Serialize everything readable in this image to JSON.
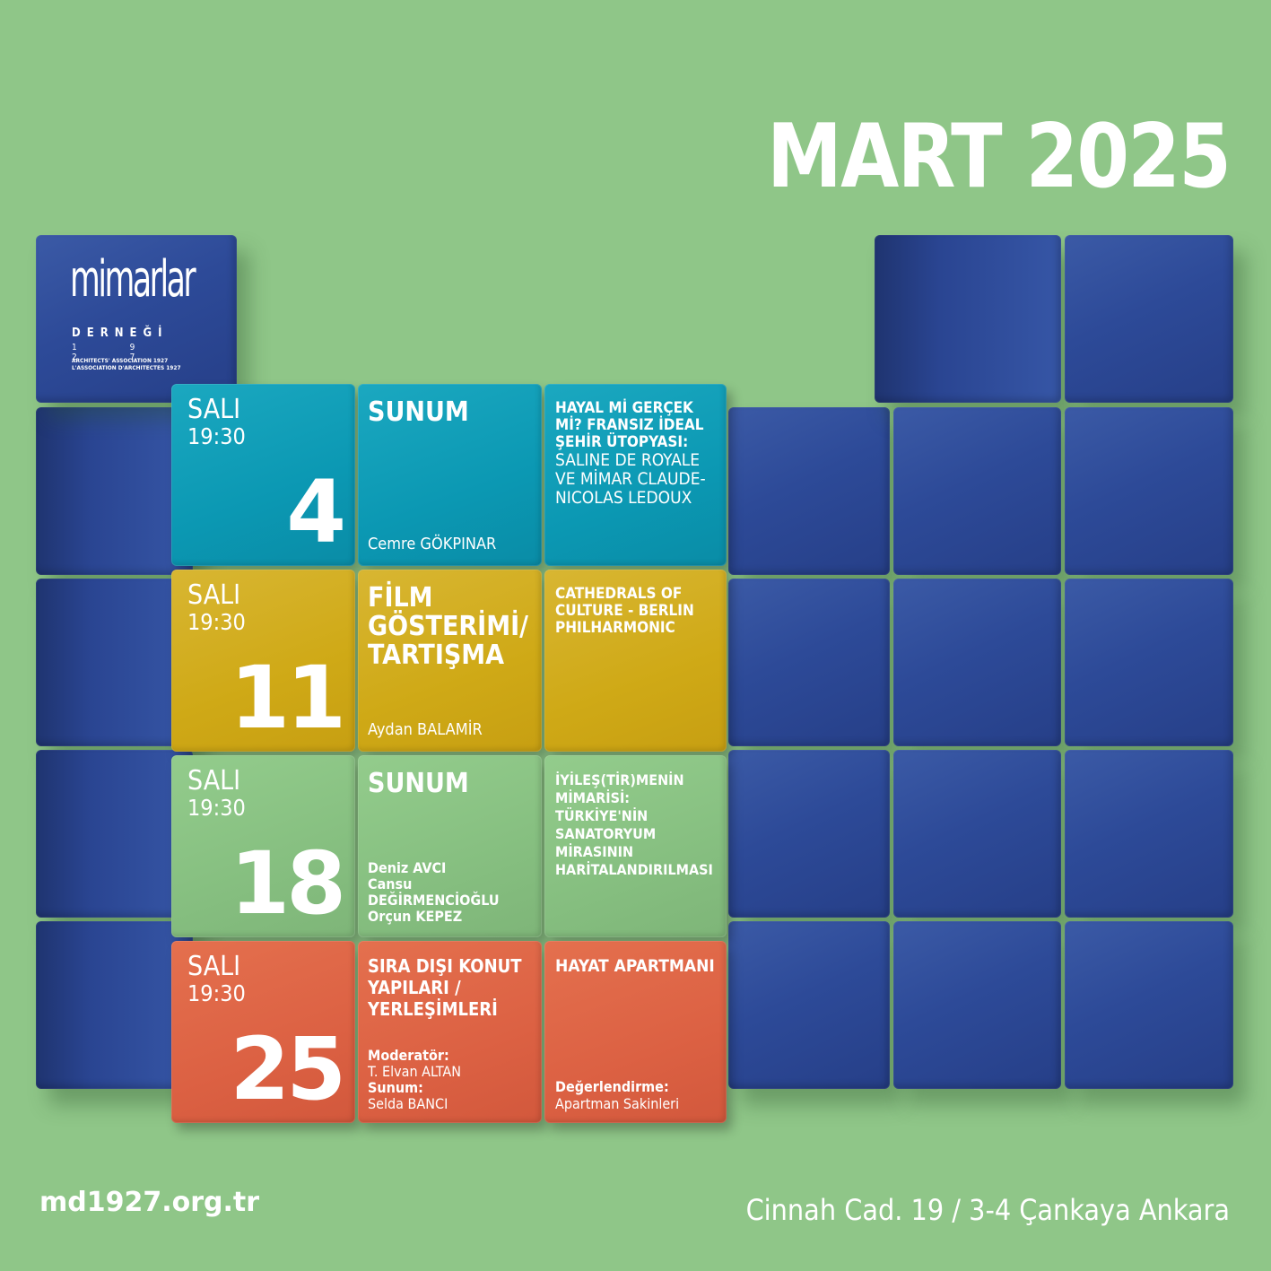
{
  "header": {
    "title": "MART 2025"
  },
  "logo": {
    "word": "mimarlar",
    "sub": "DERNEĞİ",
    "year": "1 9 2 7",
    "tag_en": "ARCHITECTS' ASSOCIATION 1927",
    "tag_fr": "L'ASSOCIATION D'ARCHITECTES 1927"
  },
  "events": [
    {
      "day_name": "SALI",
      "time": "19:30",
      "day": "4",
      "type": "SUNUM",
      "person": "Cemre GÖKPINAR",
      "desc_bold": "HAYAL Mİ GERÇEK Mİ? FRANSIZ İDEAL ŞEHİR ÜTOPYASI:",
      "desc_normal": "SALINE DE ROYALE VE MİMAR CLAUDE-NICOLAS LEDOUX",
      "desc_foot_label": "",
      "desc_foot_value": ""
    },
    {
      "day_name": "SALI",
      "time": "19:30",
      "day": "11",
      "type": "FİLM GÖSTERİMİ/ TARTIŞMA",
      "person": "Aydan BALAMİR",
      "desc_bold": "CATHEDRALS OF CULTURE - BERLIN PHILHARMONIC",
      "desc_normal": "",
      "desc_foot_label": "",
      "desc_foot_value": ""
    },
    {
      "day_name": "SALI",
      "time": "19:30",
      "day": "18",
      "type": "SUNUM",
      "persons": [
        "Deniz AVCI",
        "Cansu DEĞİRMENCİOĞLU",
        "Orçun KEPEZ"
      ],
      "desc_bold": "İYİLEŞ(TİR)MENİN MİMARİSİ: TÜRKİYE'NİN SANATORYUM MİRASININ HARİTALANDIRILMASI",
      "desc_normal": "",
      "desc_foot_label": "",
      "desc_foot_value": ""
    },
    {
      "day_name": "SALI",
      "time": "19:30",
      "day": "25",
      "type": "SIRA DIŞI KONUT YAPILARI / YERLEŞİMLERİ",
      "moderator_label": "Moderatör:",
      "moderator": "T. Elvan ALTAN",
      "presenter_label": "Sunum:",
      "presenter": "Selda BANCI",
      "desc_bold": "HAYAT APARTMANI",
      "desc_normal": "",
      "desc_foot_label": "Değerlendirme:",
      "desc_foot_value": "Apartman Sakinleri"
    }
  ],
  "footer": {
    "website": "md1927.org.tr",
    "address": "Cinnah Cad. 19 / 3-4 Çankaya Ankara"
  },
  "colors": {
    "background": "#8fc688",
    "cube_blue": "#2d4a98",
    "teal": "#0b98b3",
    "gold": "#cfa916",
    "green": "#86bf80",
    "orange": "#dc6143"
  }
}
